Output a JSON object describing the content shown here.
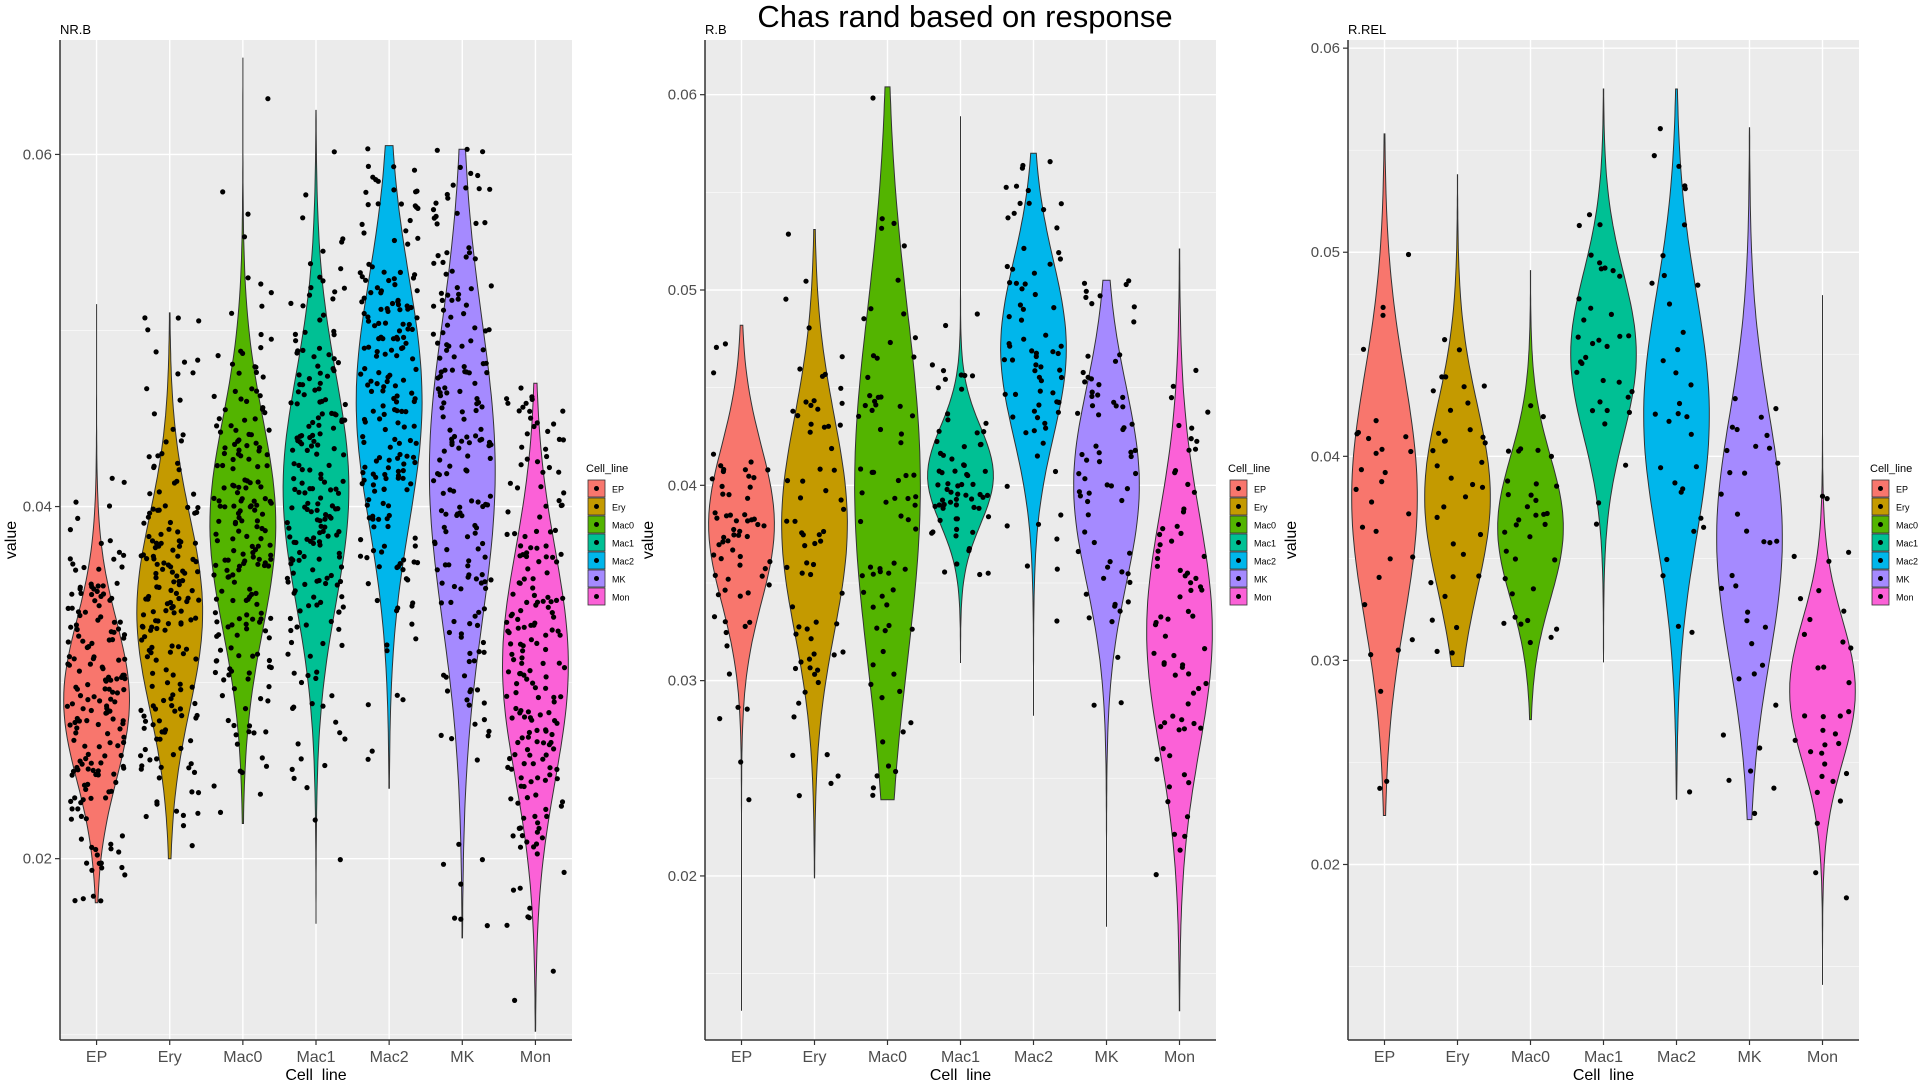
{
  "figure": {
    "title": "Chas rand based on response"
  },
  "chart_data": [
    {
      "type": "violin",
      "subtitle": "NR.B",
      "xlabel": "Cell_line",
      "ylabel": "value",
      "yticks": [
        0.02,
        0.04,
        0.06
      ],
      "ylim": [
        0.0097,
        0.0665
      ],
      "grid": true,
      "legend": {
        "title": "Cell_line",
        "position": "right"
      },
      "categories": [
        "EP",
        "Ery",
        "Mac0",
        "Mac1",
        "Mac2",
        "MK",
        "Mon"
      ],
      "groups": [
        {
          "name": "EP",
          "min": 0.0175,
          "max": 0.0515,
          "mode": 0.029,
          "spread": 0.0045,
          "n_points": 180
        },
        {
          "name": "Ery",
          "min": 0.02,
          "max": 0.051,
          "mode": 0.034,
          "spread": 0.0055,
          "n_points": 180
        },
        {
          "name": "Mac0",
          "min": 0.022,
          "max": 0.0655,
          "mode": 0.039,
          "spread": 0.006,
          "n_points": 200
        },
        {
          "name": "Mac1",
          "min": 0.0163,
          "max": 0.0625,
          "mode": 0.041,
          "spread": 0.0065,
          "n_points": 200
        },
        {
          "name": "Mac2",
          "min": 0.024,
          "max": 0.0605,
          "mode": 0.046,
          "spread": 0.007,
          "n_points": 200
        },
        {
          "name": "MK",
          "min": 0.0155,
          "max": 0.0603,
          "mode": 0.042,
          "spread": 0.0085,
          "n_points": 200
        },
        {
          "name": "Mon",
          "min": 0.0102,
          "max": 0.047,
          "mode": 0.031,
          "spread": 0.0065,
          "n_points": 200
        }
      ]
    },
    {
      "type": "violin",
      "subtitle": "R.B",
      "xlabel": "Cell_line",
      "ylabel": "value",
      "yticks": [
        0.02,
        0.03,
        0.04,
        0.05,
        0.06
      ],
      "ylim": [
        0.0116,
        0.0628
      ],
      "grid": true,
      "legend": {
        "title": "Cell_line",
        "position": "right"
      },
      "categories": [
        "EP",
        "Ery",
        "Mac0",
        "Mac1",
        "Mac2",
        "MK",
        "Mon"
      ],
      "groups": [
        {
          "name": "EP",
          "min": 0.0131,
          "max": 0.0482,
          "mode": 0.038,
          "spread": 0.004,
          "n_points": 65
        },
        {
          "name": "Ery",
          "min": 0.0199,
          "max": 0.0531,
          "mode": 0.038,
          "spread": 0.0055,
          "n_points": 70
        },
        {
          "name": "Mac0",
          "min": 0.0239,
          "max": 0.0604,
          "mode": 0.04,
          "spread": 0.009,
          "n_points": 75
        },
        {
          "name": "Mac1",
          "min": 0.0309,
          "max": 0.0589,
          "mode": 0.0405,
          "spread": 0.0025,
          "n_points": 70
        },
        {
          "name": "Mac2",
          "min": 0.0282,
          "max": 0.057,
          "mode": 0.047,
          "spread": 0.0045,
          "n_points": 75
        },
        {
          "name": "MK",
          "min": 0.0174,
          "max": 0.0505,
          "mode": 0.04,
          "spread": 0.005,
          "n_points": 70
        },
        {
          "name": "Mon",
          "min": 0.0131,
          "max": 0.0521,
          "mode": 0.0325,
          "spread": 0.006,
          "n_points": 75
        }
      ]
    },
    {
      "type": "violin",
      "subtitle": "R.REL",
      "xlabel": "Cell_line",
      "ylabel": "value",
      "yticks": [
        0.02,
        0.03,
        0.04,
        0.05,
        0.06
      ],
      "ylim": [
        0.0114,
        0.0604
      ],
      "grid": true,
      "legend": {
        "title": "Cell_line",
        "position": "right"
      },
      "categories": [
        "EP",
        "Ery",
        "Mac0",
        "Mac1",
        "Mac2",
        "MK",
        "Mon"
      ],
      "groups": [
        {
          "name": "EP",
          "min": 0.0224,
          "max": 0.0558,
          "mode": 0.038,
          "spread": 0.006,
          "n_points": 30
        },
        {
          "name": "Ery",
          "min": 0.0297,
          "max": 0.0538,
          "mode": 0.038,
          "spread": 0.0045,
          "n_points": 35
        },
        {
          "name": "Mac0",
          "min": 0.0271,
          "max": 0.0491,
          "mode": 0.0365,
          "spread": 0.0035,
          "n_points": 35
        },
        {
          "name": "Mac1",
          "min": 0.0299,
          "max": 0.058,
          "mode": 0.045,
          "spread": 0.004,
          "n_points": 35
        },
        {
          "name": "Mac2",
          "min": 0.0232,
          "max": 0.058,
          "mode": 0.042,
          "spread": 0.006,
          "n_points": 35
        },
        {
          "name": "MK",
          "min": 0.0222,
          "max": 0.0561,
          "mode": 0.036,
          "spread": 0.006,
          "n_points": 35
        },
        {
          "name": "Mon",
          "min": 0.0141,
          "max": 0.0479,
          "mode": 0.0285,
          "spread": 0.0035,
          "n_points": 35
        }
      ]
    }
  ],
  "colors": {
    "EP": "#F8766D",
    "Ery": "#C49A00",
    "Mac0": "#53B400",
    "Mac1": "#00C094",
    "Mac2": "#00B6EB",
    "MK": "#A58AFF",
    "Mon": "#FB61D7",
    "panel_bg": "#EBEBEB",
    "grid": "#FFFFFF",
    "axis": "#333333",
    "tick_label": "#4D4D4D"
  }
}
